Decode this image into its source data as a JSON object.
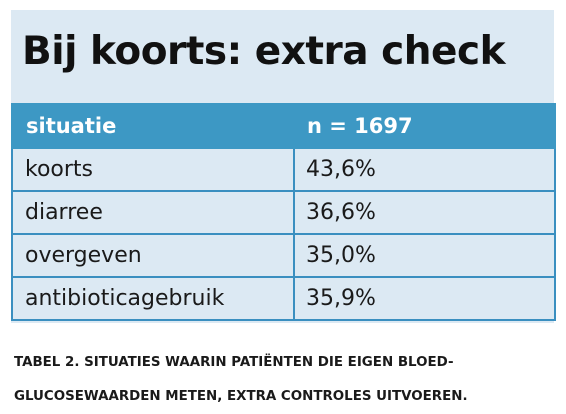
{
  "title": "Bij koorts: extra check",
  "table": {
    "headers": [
      "situatie",
      "n = 1697"
    ],
    "rows": [
      [
        "koorts",
        "43,6%"
      ],
      [
        "diarree",
        "36,6%"
      ],
      [
        "overgeven",
        "35,0%"
      ],
      [
        "antibioticagebruik",
        "35,9%"
      ]
    ]
  },
  "caption": {
    "line1": "TABEL 2. SITUATIES WAARIN PATIËNTEN DIE EIGEN BLOED-",
    "line2": "GLUCOSEWAARDEN METEN, EXTRA CONTROLES UITVOEREN."
  },
  "colors": {
    "panel_background": "#dce9f3",
    "header_background": "#3d98c4",
    "grid_lines": "#3a8fc0",
    "text": "#1a1a1a"
  }
}
